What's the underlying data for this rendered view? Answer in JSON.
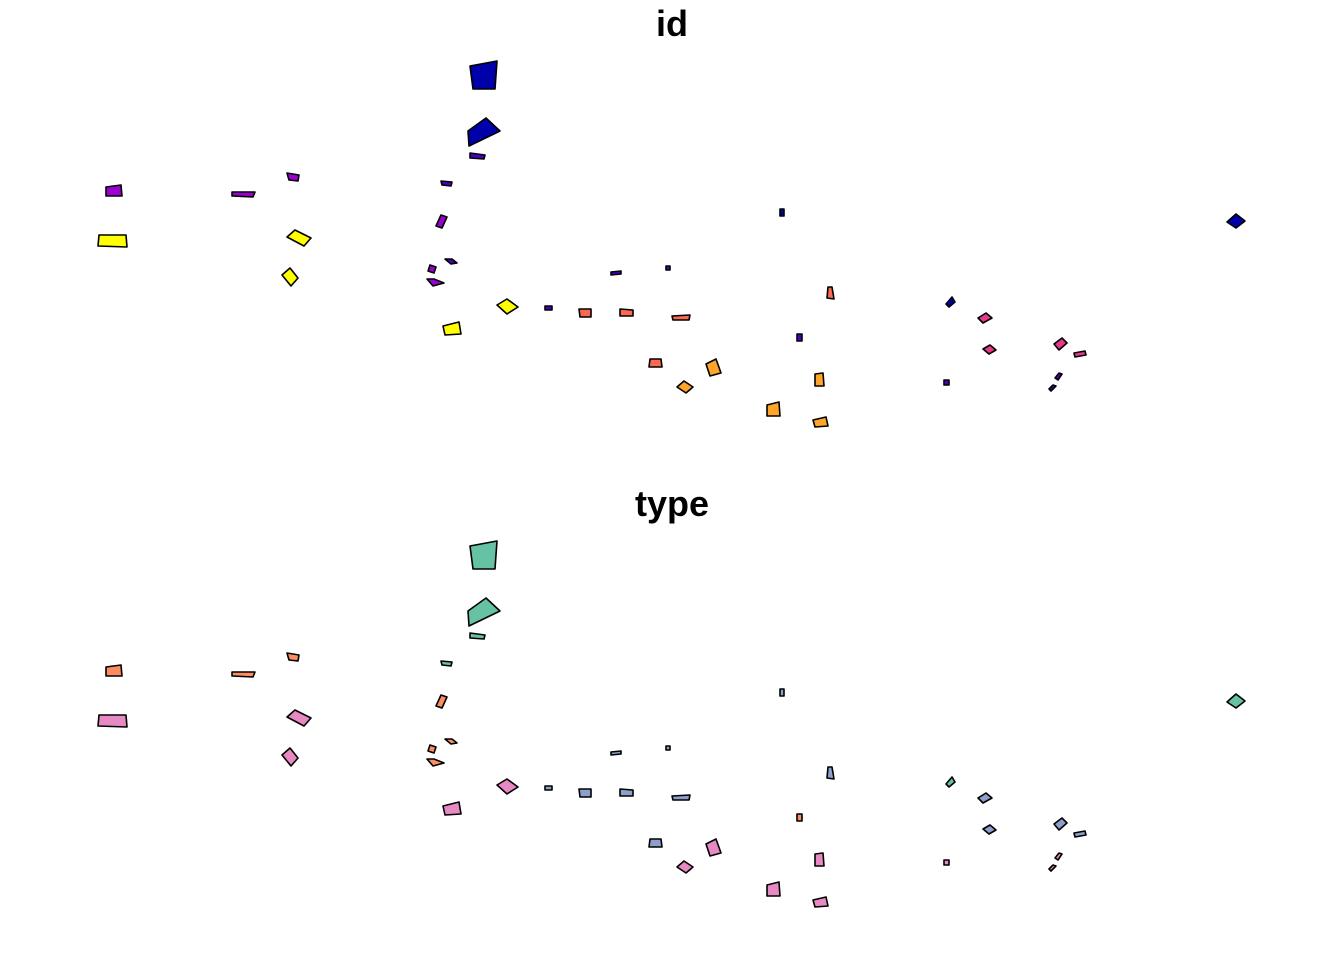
{
  "panels": [
    {
      "title": "id",
      "palette": [
        "#0000AA",
        "#4B00C0",
        "#9A00D0",
        "#E6398A",
        "#FA6A50",
        "#FFA52A",
        "#FFFF00"
      ]
    },
    {
      "title": "type",
      "palette": [
        "#66C2A5",
        "#FC8D62",
        "#8DA0CB",
        "#E78AC3"
      ]
    }
  ]
}
